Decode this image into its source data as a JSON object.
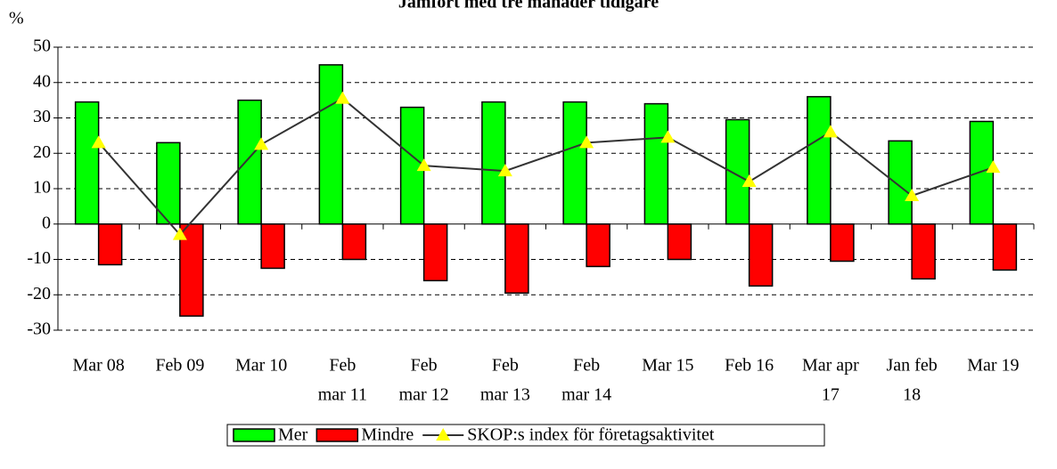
{
  "chart_data": {
    "type": "bar",
    "title": "Jämfört med tre månader tidigare",
    "y_label": "%",
    "categories": [
      [
        "Mar 08"
      ],
      [
        "Feb 09"
      ],
      [
        "Mar 10"
      ],
      [
        "Feb",
        "mar 11"
      ],
      [
        "Feb",
        "mar 12"
      ],
      [
        "Feb",
        "mar 13"
      ],
      [
        "Feb",
        "mar 14"
      ],
      [
        "Mar 15"
      ],
      [
        "Feb 16"
      ],
      [
        "Mar apr",
        "17"
      ],
      [
        "Jan feb",
        "18"
      ],
      [
        "Mar 19"
      ]
    ],
    "series": [
      {
        "name": "Mer",
        "type": "bar",
        "color": "#00ff00",
        "values": [
          34.5,
          23,
          35,
          45,
          33,
          34.5,
          34.5,
          34,
          29.5,
          36,
          23.5,
          29
        ]
      },
      {
        "name": "Mindre",
        "type": "bar",
        "color": "#ff0000",
        "values": [
          -11.5,
          -26,
          -12.5,
          -10,
          -16,
          -19.5,
          -12,
          -10,
          -17.5,
          -10.5,
          -15.5,
          -13
        ]
      },
      {
        "name": "SKOP:s index för företagsaktivitet",
        "type": "line",
        "color": "#333333",
        "marker_color": "#ffff00",
        "values": [
          23,
          -3,
          22.5,
          35.5,
          16.5,
          15,
          23,
          24.5,
          12,
          26,
          8,
          16
        ]
      }
    ],
    "ylim": [
      -30,
      50
    ],
    "yticks": [
      -30,
      -20,
      -10,
      0,
      10,
      20,
      30,
      40,
      50
    ],
    "grid": true,
    "legend": "bottom"
  }
}
